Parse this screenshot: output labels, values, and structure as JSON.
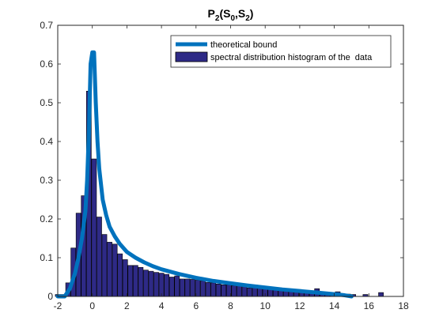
{
  "chart_data": {
    "type": "bar",
    "title": {
      "main": "P",
      "main_sub": "2",
      "open": "(S",
      "sub_a": "0",
      "comma": ",S",
      "sub_b": "2",
      "close": ")"
    },
    "xlabel": "",
    "ylabel": "",
    "xlim": [
      -2,
      18
    ],
    "ylim": [
      0,
      0.7
    ],
    "xticks": [
      -2,
      0,
      2,
      4,
      6,
      8,
      10,
      12,
      14,
      16,
      18
    ],
    "yticks": [
      0,
      0.1,
      0.2,
      0.3,
      0.4,
      0.5,
      0.6,
      0.7
    ],
    "legend_position": "top-right",
    "bar_width": 0.28,
    "colors": {
      "line": "#0072bd",
      "bar_fill": "#2e2a86",
      "bar_edge": "#000000",
      "axis": "#262626"
    },
    "series": [
      {
        "name": "theoretical bound",
        "kind": "line",
        "x": [
          -2,
          -1.6,
          -1.3,
          -1.0,
          -0.8,
          -0.6,
          -0.4,
          -0.3,
          -0.2,
          -0.1,
          0,
          0.1,
          0.2,
          0.3,
          0.4,
          0.5,
          0.6,
          0.8,
          1.0,
          1.3,
          1.6,
          2.0,
          2.5,
          3.0,
          3.5,
          4.0,
          5.0,
          6.0,
          7.0,
          8.0,
          9.0,
          10.0,
          11.0,
          12.0,
          13.0,
          14.0,
          14.6,
          15.0
        ],
        "y": [
          0.0,
          0.0,
          0.02,
          0.06,
          0.1,
          0.15,
          0.22,
          0.3,
          0.42,
          0.6,
          0.63,
          0.63,
          0.5,
          0.4,
          0.33,
          0.29,
          0.25,
          0.21,
          0.18,
          0.155,
          0.135,
          0.115,
          0.1,
          0.088,
          0.078,
          0.07,
          0.058,
          0.048,
          0.04,
          0.034,
          0.028,
          0.023,
          0.018,
          0.014,
          0.01,
          0.006,
          0.003,
          0.0
        ]
      },
      {
        "name": "spectral distribution histogram of the  data",
        "kind": "bar",
        "x": [
          -2.0,
          -1.7,
          -1.4,
          -1.1,
          -0.8,
          -0.5,
          -0.2,
          0.1,
          0.4,
          0.7,
          1.0,
          1.3,
          1.6,
          1.9,
          2.2,
          2.5,
          2.8,
          3.1,
          3.4,
          3.7,
          4.0,
          4.3,
          4.6,
          4.9,
          5.2,
          5.5,
          5.8,
          6.1,
          6.4,
          6.7,
          7.0,
          7.3,
          7.6,
          7.9,
          8.2,
          8.5,
          8.8,
          9.1,
          9.4,
          9.7,
          10.0,
          10.3,
          10.6,
          10.9,
          11.2,
          11.5,
          11.8,
          12.1,
          12.4,
          12.7,
          13.0,
          13.3,
          13.6,
          13.9,
          14.2,
          14.5,
          14.8,
          15.1,
          15.8,
          16.7
        ],
        "values": [
          0.005,
          0.005,
          0.035,
          0.125,
          0.215,
          0.26,
          0.53,
          0.355,
          0.205,
          0.16,
          0.14,
          0.135,
          0.11,
          0.095,
          0.08,
          0.08,
          0.075,
          0.068,
          0.065,
          0.062,
          0.06,
          0.057,
          0.05,
          0.053,
          0.045,
          0.045,
          0.044,
          0.042,
          0.04,
          0.036,
          0.035,
          0.032,
          0.03,
          0.03,
          0.028,
          0.03,
          0.025,
          0.022,
          0.03,
          0.025,
          0.022,
          0.018,
          0.02,
          0.015,
          0.015,
          0.012,
          0.015,
          0.01,
          0.014,
          0.012,
          0.02,
          0.012,
          0.008,
          0.01,
          0.012,
          0.005,
          0.006,
          0.005,
          0.005,
          0.01
        ]
      }
    ]
  }
}
